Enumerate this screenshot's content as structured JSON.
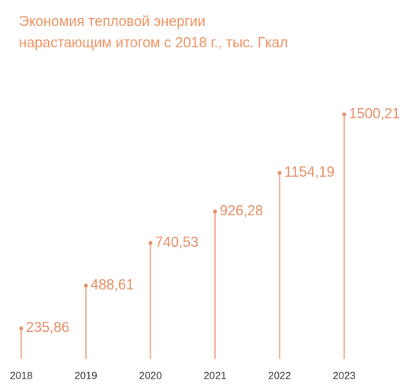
{
  "chart_data": {
    "type": "lollipop",
    "title": "Экономия тепловой энергии",
    "subtitle": "нарастающим итогом с 2018 г., тыс. Гкал",
    "categories": [
      "2018",
      "2019",
      "2020",
      "2021",
      "2022",
      "2023"
    ],
    "values": [
      235.86,
      488.61,
      740.53,
      926.28,
      1154.19,
      1500.21
    ],
    "value_labels": [
      "235,86",
      "488,61",
      "740,53",
      "926,28",
      "1154,19",
      "1500,21"
    ],
    "color": "#e8916a"
  }
}
